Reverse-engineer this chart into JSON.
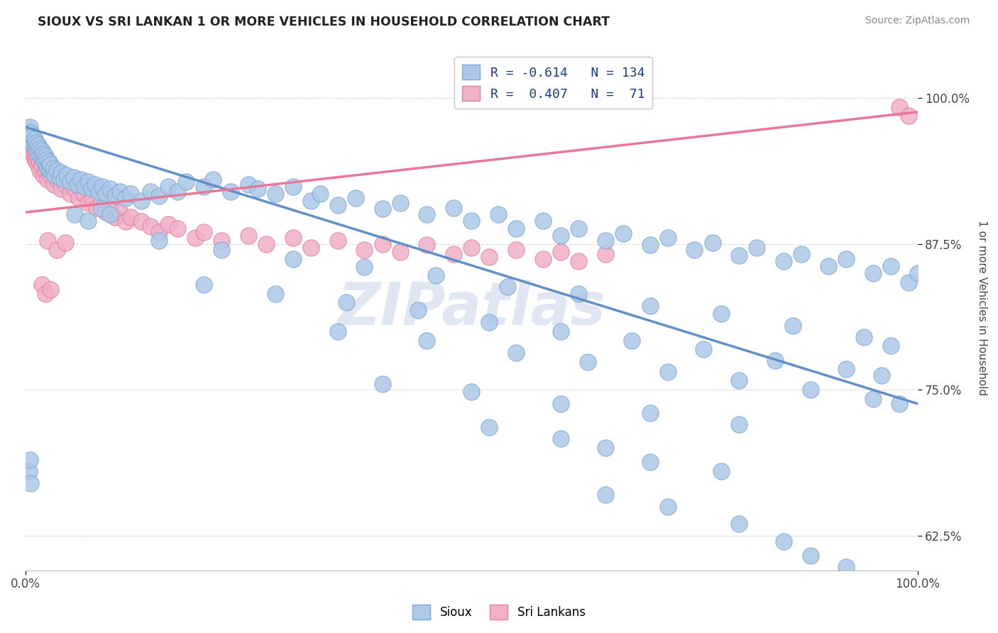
{
  "title": "SIOUX VS SRI LANKAN 1 OR MORE VEHICLES IN HOUSEHOLD CORRELATION CHART",
  "source_text": "Source: ZipAtlas.com",
  "ylabel": "1 or more Vehicles in Household",
  "xlim": [
    0,
    1
  ],
  "ylim": [
    0.595,
    1.045
  ],
  "ytick_vals": [
    0.625,
    0.75,
    0.875,
    1.0
  ],
  "ytick_labels": [
    "62.5%",
    "75.0%",
    "87.5%",
    "100.0%"
  ],
  "xtick_vals": [
    0.0,
    1.0
  ],
  "xtick_labels": [
    "0.0%",
    "100.0%"
  ],
  "legend_line1": "R = -0.614   N = 134",
  "legend_line2": "R =  0.407   N =  71",
  "legend_label_sioux": "Sioux",
  "legend_label_sri": "Sri Lankans",
  "watermark": "ZIPatlas",
  "watermark_color": "#c8d4e8",
  "background_color": "#ffffff",
  "grid_color": "#d8d8d8",
  "sioux_color": "#adc8e8",
  "srilanka_color": "#f0b0c8",
  "sioux_edge": "#80a8d0",
  "srilanka_edge": "#e080a0",
  "blue_line_color": "#6090c8",
  "pink_line_color": "#e87898",
  "blue_line_x": [
    0.0,
    1.0
  ],
  "blue_line_y": [
    0.975,
    0.738
  ],
  "pink_line_x": [
    0.0,
    1.0
  ],
  "pink_line_y": [
    0.902,
    0.988
  ],
  "sioux_scatter": [
    [
      0.003,
      0.972
    ],
    [
      0.004,
      0.968
    ],
    [
      0.005,
      0.975
    ],
    [
      0.006,
      0.97
    ],
    [
      0.007,
      0.963
    ],
    [
      0.008,
      0.968
    ],
    [
      0.009,
      0.96
    ],
    [
      0.01,
      0.965
    ],
    [
      0.011,
      0.958
    ],
    [
      0.012,
      0.962
    ],
    [
      0.013,
      0.955
    ],
    [
      0.014,
      0.96
    ],
    [
      0.015,
      0.952
    ],
    [
      0.016,
      0.957
    ],
    [
      0.017,
      0.95
    ],
    [
      0.018,
      0.955
    ],
    [
      0.019,
      0.948
    ],
    [
      0.02,
      0.952
    ],
    [
      0.021,
      0.945
    ],
    [
      0.022,
      0.95
    ],
    [
      0.023,
      0.942
    ],
    [
      0.024,
      0.947
    ],
    [
      0.025,
      0.94
    ],
    [
      0.026,
      0.945
    ],
    [
      0.027,
      0.938
    ],
    [
      0.028,
      0.943
    ],
    [
      0.03,
      0.936
    ],
    [
      0.031,
      0.94
    ],
    [
      0.033,
      0.934
    ],
    [
      0.035,
      0.938
    ],
    [
      0.038,
      0.932
    ],
    [
      0.04,
      0.936
    ],
    [
      0.043,
      0.93
    ],
    [
      0.046,
      0.934
    ],
    [
      0.05,
      0.928
    ],
    [
      0.054,
      0.932
    ],
    [
      0.058,
      0.926
    ],
    [
      0.062,
      0.93
    ],
    [
      0.066,
      0.924
    ],
    [
      0.07,
      0.928
    ],
    [
      0.074,
      0.922
    ],
    [
      0.078,
      0.926
    ],
    [
      0.082,
      0.92
    ],
    [
      0.086,
      0.924
    ],
    [
      0.09,
      0.918
    ],
    [
      0.095,
      0.922
    ],
    [
      0.1,
      0.916
    ],
    [
      0.106,
      0.92
    ],
    [
      0.112,
      0.914
    ],
    [
      0.118,
      0.918
    ],
    [
      0.055,
      0.9
    ],
    [
      0.07,
      0.895
    ],
    [
      0.085,
      0.905
    ],
    [
      0.095,
      0.9
    ],
    [
      0.13,
      0.912
    ],
    [
      0.14,
      0.92
    ],
    [
      0.15,
      0.916
    ],
    [
      0.16,
      0.924
    ],
    [
      0.17,
      0.92
    ],
    [
      0.18,
      0.928
    ],
    [
      0.2,
      0.924
    ],
    [
      0.21,
      0.93
    ],
    [
      0.23,
      0.92
    ],
    [
      0.25,
      0.926
    ],
    [
      0.26,
      0.922
    ],
    [
      0.28,
      0.918
    ],
    [
      0.3,
      0.924
    ],
    [
      0.32,
      0.912
    ],
    [
      0.33,
      0.918
    ],
    [
      0.35,
      0.908
    ],
    [
      0.37,
      0.914
    ],
    [
      0.4,
      0.905
    ],
    [
      0.42,
      0.91
    ],
    [
      0.45,
      0.9
    ],
    [
      0.48,
      0.906
    ],
    [
      0.5,
      0.895
    ],
    [
      0.53,
      0.9
    ],
    [
      0.55,
      0.888
    ],
    [
      0.58,
      0.895
    ],
    [
      0.6,
      0.882
    ],
    [
      0.62,
      0.888
    ],
    [
      0.65,
      0.878
    ],
    [
      0.67,
      0.884
    ],
    [
      0.7,
      0.874
    ],
    [
      0.72,
      0.88
    ],
    [
      0.75,
      0.87
    ],
    [
      0.77,
      0.876
    ],
    [
      0.8,
      0.865
    ],
    [
      0.82,
      0.872
    ],
    [
      0.85,
      0.86
    ],
    [
      0.87,
      0.866
    ],
    [
      0.9,
      0.856
    ],
    [
      0.92,
      0.862
    ],
    [
      0.95,
      0.85
    ],
    [
      0.97,
      0.856
    ],
    [
      0.99,
      0.842
    ],
    [
      1.0,
      0.85
    ],
    [
      0.15,
      0.878
    ],
    [
      0.22,
      0.87
    ],
    [
      0.3,
      0.862
    ],
    [
      0.38,
      0.855
    ],
    [
      0.46,
      0.848
    ],
    [
      0.54,
      0.838
    ],
    [
      0.62,
      0.832
    ],
    [
      0.7,
      0.822
    ],
    [
      0.78,
      0.815
    ],
    [
      0.86,
      0.805
    ],
    [
      0.94,
      0.795
    ],
    [
      0.97,
      0.788
    ],
    [
      0.2,
      0.84
    ],
    [
      0.28,
      0.832
    ],
    [
      0.36,
      0.825
    ],
    [
      0.44,
      0.818
    ],
    [
      0.52,
      0.808
    ],
    [
      0.6,
      0.8
    ],
    [
      0.68,
      0.792
    ],
    [
      0.76,
      0.785
    ],
    [
      0.84,
      0.775
    ],
    [
      0.92,
      0.768
    ],
    [
      0.96,
      0.762
    ],
    [
      0.35,
      0.8
    ],
    [
      0.45,
      0.792
    ],
    [
      0.55,
      0.782
    ],
    [
      0.63,
      0.774
    ],
    [
      0.72,
      0.765
    ],
    [
      0.8,
      0.758
    ],
    [
      0.88,
      0.75
    ],
    [
      0.95,
      0.742
    ],
    [
      0.98,
      0.738
    ],
    [
      0.4,
      0.755
    ],
    [
      0.5,
      0.748
    ],
    [
      0.6,
      0.738
    ],
    [
      0.7,
      0.73
    ],
    [
      0.8,
      0.72
    ],
    [
      0.52,
      0.718
    ],
    [
      0.6,
      0.708
    ],
    [
      0.65,
      0.7
    ],
    [
      0.7,
      0.688
    ],
    [
      0.78,
      0.68
    ],
    [
      0.65,
      0.66
    ],
    [
      0.72,
      0.65
    ],
    [
      0.8,
      0.635
    ],
    [
      0.85,
      0.62
    ],
    [
      0.88,
      0.608
    ],
    [
      0.92,
      0.598
    ],
    [
      0.004,
      0.68
    ],
    [
      0.005,
      0.69
    ],
    [
      0.006,
      0.67
    ]
  ],
  "sri_scatter": [
    [
      0.003,
      0.965
    ],
    [
      0.004,
      0.958
    ],
    [
      0.005,
      0.962
    ],
    [
      0.006,
      0.955
    ],
    [
      0.007,
      0.96
    ],
    [
      0.008,
      0.952
    ],
    [
      0.009,
      0.956
    ],
    [
      0.01,
      0.948
    ],
    [
      0.011,
      0.952
    ],
    [
      0.012,
      0.945
    ],
    [
      0.013,
      0.95
    ],
    [
      0.014,
      0.942
    ],
    [
      0.015,
      0.946
    ],
    [
      0.016,
      0.938
    ],
    [
      0.018,
      0.942
    ],
    [
      0.02,
      0.934
    ],
    [
      0.022,
      0.938
    ],
    [
      0.025,
      0.93
    ],
    [
      0.028,
      0.934
    ],
    [
      0.032,
      0.926
    ],
    [
      0.036,
      0.93
    ],
    [
      0.04,
      0.922
    ],
    [
      0.045,
      0.926
    ],
    [
      0.05,
      0.918
    ],
    [
      0.055,
      0.922
    ],
    [
      0.06,
      0.914
    ],
    [
      0.065,
      0.918
    ],
    [
      0.07,
      0.91
    ],
    [
      0.075,
      0.914
    ],
    [
      0.08,
      0.906
    ],
    [
      0.085,
      0.91
    ],
    [
      0.09,
      0.902
    ],
    [
      0.095,
      0.906
    ],
    [
      0.1,
      0.898
    ],
    [
      0.106,
      0.902
    ],
    [
      0.112,
      0.894
    ],
    [
      0.118,
      0.898
    ],
    [
      0.025,
      0.878
    ],
    [
      0.035,
      0.87
    ],
    [
      0.045,
      0.876
    ],
    [
      0.018,
      0.84
    ],
    [
      0.022,
      0.832
    ],
    [
      0.028,
      0.836
    ],
    [
      0.13,
      0.894
    ],
    [
      0.14,
      0.89
    ],
    [
      0.15,
      0.885
    ],
    [
      0.16,
      0.892
    ],
    [
      0.17,
      0.888
    ],
    [
      0.19,
      0.88
    ],
    [
      0.2,
      0.885
    ],
    [
      0.22,
      0.878
    ],
    [
      0.25,
      0.882
    ],
    [
      0.27,
      0.875
    ],
    [
      0.3,
      0.88
    ],
    [
      0.32,
      0.872
    ],
    [
      0.35,
      0.878
    ],
    [
      0.38,
      0.87
    ],
    [
      0.4,
      0.875
    ],
    [
      0.42,
      0.868
    ],
    [
      0.45,
      0.874
    ],
    [
      0.48,
      0.866
    ],
    [
      0.5,
      0.872
    ],
    [
      0.52,
      0.864
    ],
    [
      0.55,
      0.87
    ],
    [
      0.58,
      0.862
    ],
    [
      0.6,
      0.868
    ],
    [
      0.62,
      0.86
    ],
    [
      0.65,
      0.866
    ],
    [
      0.98,
      0.992
    ],
    [
      0.99,
      0.985
    ]
  ]
}
